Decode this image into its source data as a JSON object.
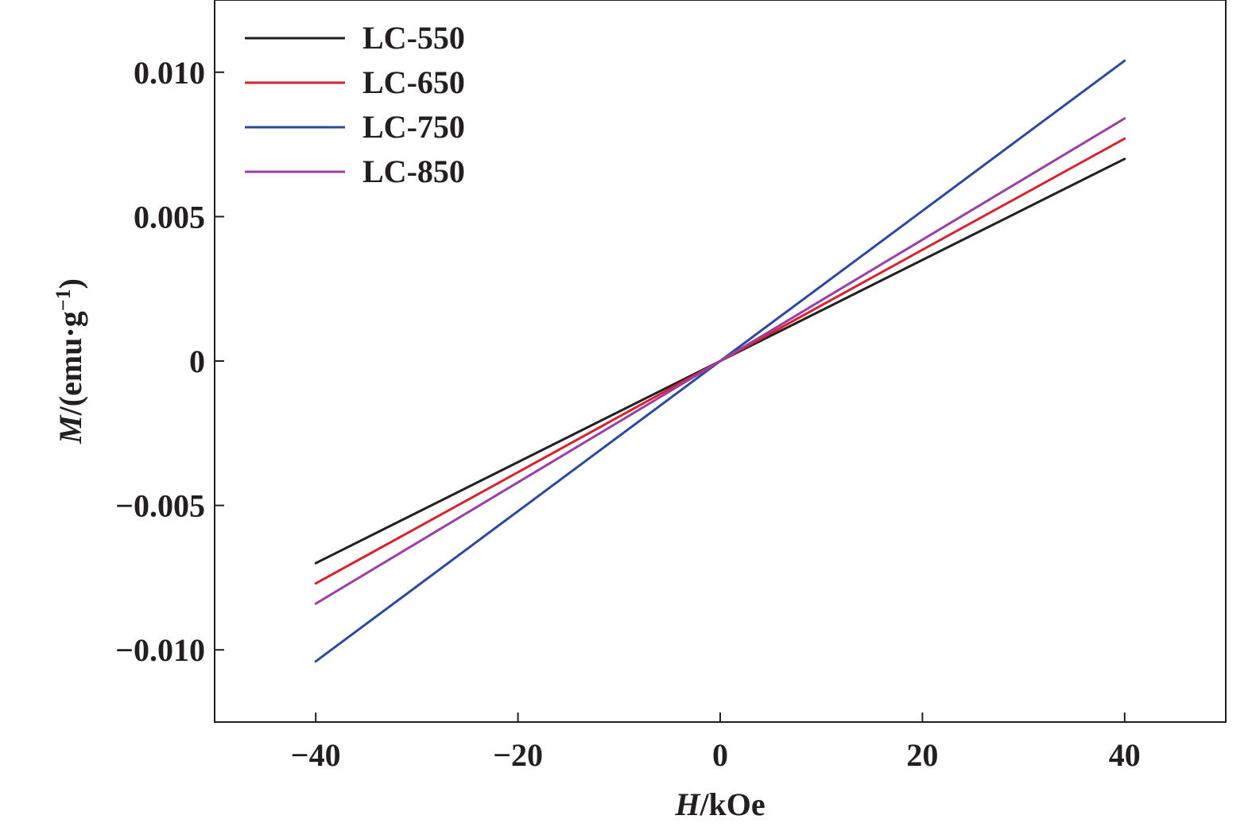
{
  "chart_data": {
    "type": "line",
    "xlabel": {
      "var": "H",
      "unit": "/kOe"
    },
    "ylabel": {
      "var": "M",
      "unit": "/(emu·g",
      "sup": "−1",
      "close": ")"
    },
    "xlim": [
      -50,
      50
    ],
    "ylim": [
      -0.0125,
      0.0125
    ],
    "xticks": [
      -40,
      -20,
      0,
      20,
      40
    ],
    "xtick_labels": [
      "−40",
      "−20",
      "0",
      "20",
      "40"
    ],
    "yticks": [
      0.01,
      0.005,
      0,
      -0.005,
      -0.01
    ],
    "ytick_labels": [
      "0.010",
      "0.005",
      "0",
      "−0.005",
      "−0.010"
    ],
    "legend_position": "top-left",
    "grid": false,
    "series": [
      {
        "name": "LC-550",
        "color": "#231f20",
        "x": [
          -40,
          0,
          40
        ],
        "y": [
          -0.007,
          0,
          0.007
        ]
      },
      {
        "name": "LC-650",
        "color": "#d7232f",
        "x": [
          -40,
          0,
          40
        ],
        "y": [
          -0.0077,
          0,
          0.0077
        ]
      },
      {
        "name": "LC-750",
        "color": "#2e4a9e",
        "x": [
          -40,
          0,
          40
        ],
        "y": [
          -0.0104,
          0,
          0.0104
        ]
      },
      {
        "name": "LC-850",
        "color": "#9b3fa6",
        "x": [
          -40,
          0,
          40
        ],
        "y": [
          -0.0084,
          0,
          0.0084
        ]
      }
    ]
  }
}
